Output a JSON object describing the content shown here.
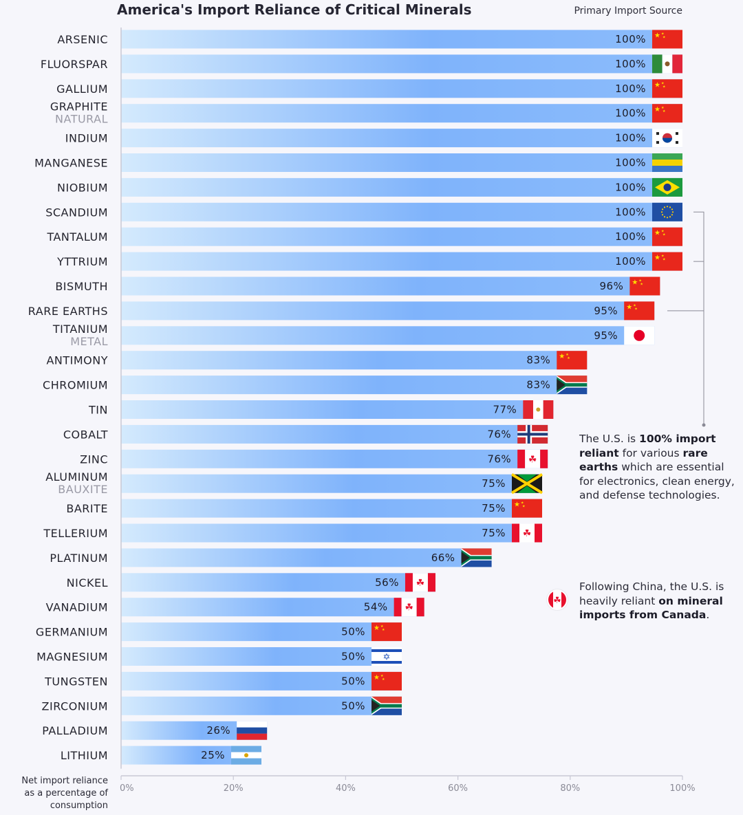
{
  "title": "America's Import Reliance of Critical Minerals",
  "source_label": "Primary Import Source",
  "colors": {
    "bar_start": "#d4eafd",
    "bar_end": "#7fb3fb",
    "axis": "#c8c8d4",
    "bracket": "#8a8a96"
  },
  "chart_data": {
    "type": "bar",
    "orientation": "horizontal",
    "title": "America's Import Reliance of Critical Minerals",
    "xlabel": "Net import reliance as a percentage of consumption",
    "xlim": [
      0,
      100
    ],
    "x_ticks": [
      "0%",
      "20%",
      "40%",
      "60%",
      "80%",
      "100%"
    ],
    "y_axis_label_lines": [
      "Net import reliance",
      "as a percentage of",
      "consumption"
    ],
    "categories": [
      {
        "name": "ARSENIC",
        "sub": "",
        "value": 100,
        "label": "100%",
        "source": "China"
      },
      {
        "name": "FLUORSPAR",
        "sub": "",
        "value": 100,
        "label": "100%",
        "source": "Mexico"
      },
      {
        "name": "GALLIUM",
        "sub": "",
        "value": 100,
        "label": "100%",
        "source": "China"
      },
      {
        "name": "GRAPHITE",
        "sub": "NATURAL",
        "value": 100,
        "label": "100%",
        "source": "China"
      },
      {
        "name": "INDIUM",
        "sub": "",
        "value": 100,
        "label": "100%",
        "source": "South Korea"
      },
      {
        "name": "MANGANESE",
        "sub": "",
        "value": 100,
        "label": "100%",
        "source": "Gabon"
      },
      {
        "name": "NIOBIUM",
        "sub": "",
        "value": 100,
        "label": "100%",
        "source": "Brazil"
      },
      {
        "name": "SCANDIUM",
        "sub": "",
        "value": 100,
        "label": "100%",
        "source": "European Union"
      },
      {
        "name": "TANTALUM",
        "sub": "",
        "value": 100,
        "label": "100%",
        "source": "China"
      },
      {
        "name": "YTTRIUM",
        "sub": "",
        "value": 100,
        "label": "100%",
        "source": "China"
      },
      {
        "name": "BISMUTH",
        "sub": "",
        "value": 96,
        "label": "96%",
        "source": "China"
      },
      {
        "name": "RARE EARTHS",
        "sub": "",
        "value": 95,
        "label": "95%",
        "source": "China"
      },
      {
        "name": "TITANIUM",
        "sub": "METAL",
        "value": 95,
        "label": "95%",
        "source": "Japan"
      },
      {
        "name": "ANTIMONY",
        "sub": "",
        "value": 83,
        "label": "83%",
        "source": "China"
      },
      {
        "name": "CHROMIUM",
        "sub": "",
        "value": 83,
        "label": "83%",
        "source": "South Africa"
      },
      {
        "name": "TIN",
        "sub": "",
        "value": 77,
        "label": "77%",
        "source": "Peru"
      },
      {
        "name": "COBALT",
        "sub": "",
        "value": 76,
        "label": "76%",
        "source": "Norway"
      },
      {
        "name": "ZINC",
        "sub": "",
        "value": 76,
        "label": "76%",
        "source": "Canada"
      },
      {
        "name": "ALUMINUM",
        "sub": "BAUXITE",
        "value": 75,
        "label": "75%",
        "source": "Jamaica"
      },
      {
        "name": "BARITE",
        "sub": "",
        "value": 75,
        "label": "75%",
        "source": "China"
      },
      {
        "name": "TELLERIUM",
        "sub": "",
        "value": 75,
        "label": "75%",
        "source": "Canada"
      },
      {
        "name": "PLATINUM",
        "sub": "",
        "value": 66,
        "label": "66%",
        "source": "South Africa"
      },
      {
        "name": "NICKEL",
        "sub": "",
        "value": 56,
        "label": "56%",
        "source": "Canada"
      },
      {
        "name": "VANADIUM",
        "sub": "",
        "value": 54,
        "label": "54%",
        "source": "Canada"
      },
      {
        "name": "GERMANIUM",
        "sub": "",
        "value": 50,
        "label": "50%",
        "source": "China"
      },
      {
        "name": "MAGNESIUM",
        "sub": "",
        "value": 50,
        "label": "50%",
        "source": "Israel"
      },
      {
        "name": "TUNGSTEN",
        "sub": "",
        "value": 50,
        "label": "50%",
        "source": "China"
      },
      {
        "name": "ZIRCONIUM",
        "sub": "",
        "value": 50,
        "label": "50%",
        "source": "South Africa"
      },
      {
        "name": "PALLADIUM",
        "sub": "",
        "value": 26,
        "label": "26%",
        "source": "Russia"
      },
      {
        "name": "LITHIUM",
        "sub": "",
        "value": 25,
        "label": "25%",
        "source": "Argentina"
      }
    ],
    "bracket_rows": [
      "SCANDIUM",
      "YTTRIUM",
      "RARE EARTHS"
    ]
  },
  "annotations": {
    "rare_earths": {
      "t1": "The U.S. is ",
      "b1": "100% import reliant",
      "t2": " for various ",
      "b2": "rare earths",
      "t3": " which are essential for electronics, clean energy, and defense technologies."
    },
    "canada": {
      "t1": "Following China, the U.S. is heavily reliant ",
      "b1": "on mineral imports from Canada",
      "t2": "."
    }
  }
}
